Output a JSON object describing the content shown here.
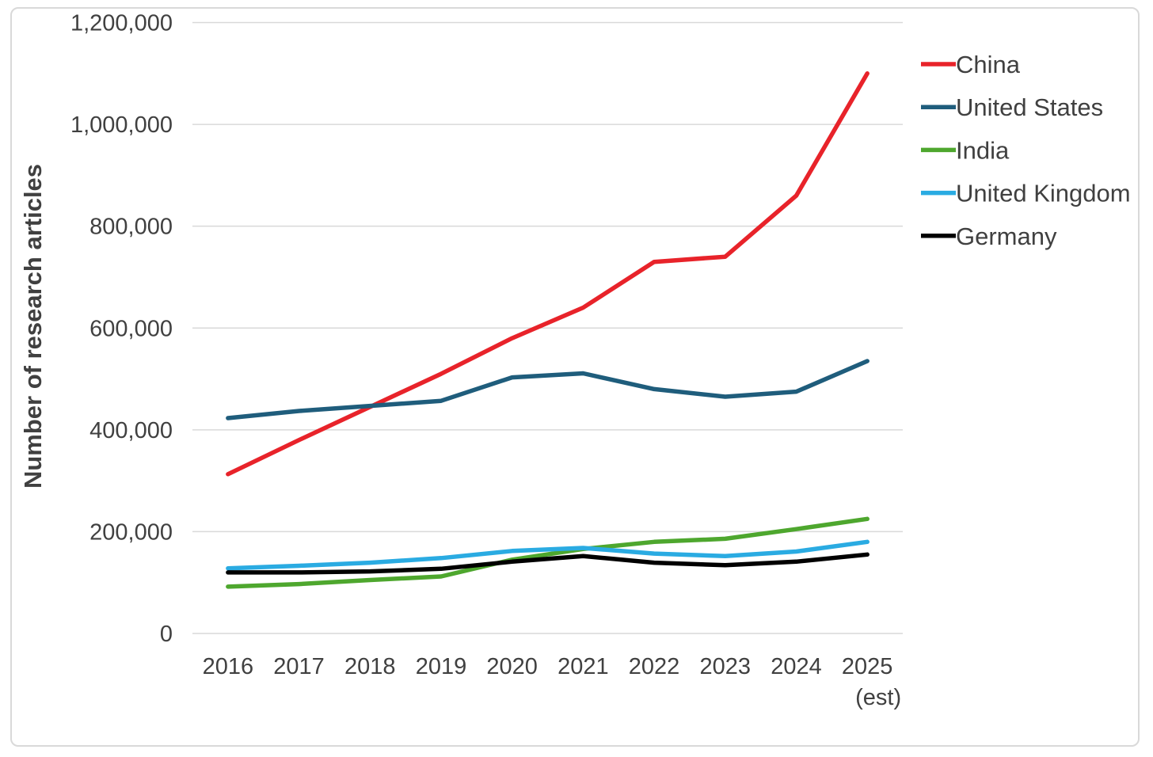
{
  "chart_data": {
    "type": "line",
    "title": "",
    "xlabel": "",
    "ylabel": "Number of research articles",
    "ylim": [
      0,
      1200000
    ],
    "grid": "horizontal",
    "legend_position": "right",
    "categories": [
      "2016",
      "2017",
      "2018",
      "2019",
      "2020",
      "2021",
      "2022",
      "2023",
      "2024",
      "2025"
    ],
    "last_category_suffix": "(est)",
    "y_ticks": [
      "0",
      "200,000",
      "400,000",
      "600,000",
      "800,000",
      "1,000,000",
      "1,200,000"
    ],
    "y_tick_values": [
      0,
      200000,
      400000,
      600000,
      800000,
      1000000,
      1200000
    ],
    "series": [
      {
        "name": "China",
        "color": "#e8232a",
        "values": [
          313000,
          380000,
          445000,
          510000,
          580000,
          640000,
          730000,
          740000,
          860000,
          1100000
        ]
      },
      {
        "name": "United States",
        "color": "#1f5d7c",
        "values": [
          423000,
          437000,
          447000,
          457000,
          503000,
          511000,
          480000,
          465000,
          475000,
          535000
        ]
      },
      {
        "name": "India",
        "color": "#4ea72e",
        "values": [
          92000,
          97000,
          105000,
          112000,
          145000,
          166000,
          180000,
          186000,
          205000,
          225000
        ]
      },
      {
        "name": "United Kingdom",
        "color": "#2aabe2",
        "values": [
          128000,
          133000,
          139000,
          148000,
          162000,
          168000,
          157000,
          152000,
          161000,
          180000
        ]
      },
      {
        "name": "Germany",
        "color": "#000000",
        "values": [
          120000,
          120000,
          122000,
          127000,
          141000,
          152000,
          139000,
          134000,
          141000,
          155000
        ]
      }
    ],
    "colors": {
      "grid": "#d9d9d9",
      "text": "#404040",
      "border": "#d9d9d9",
      "background": "#ffffff"
    }
  }
}
